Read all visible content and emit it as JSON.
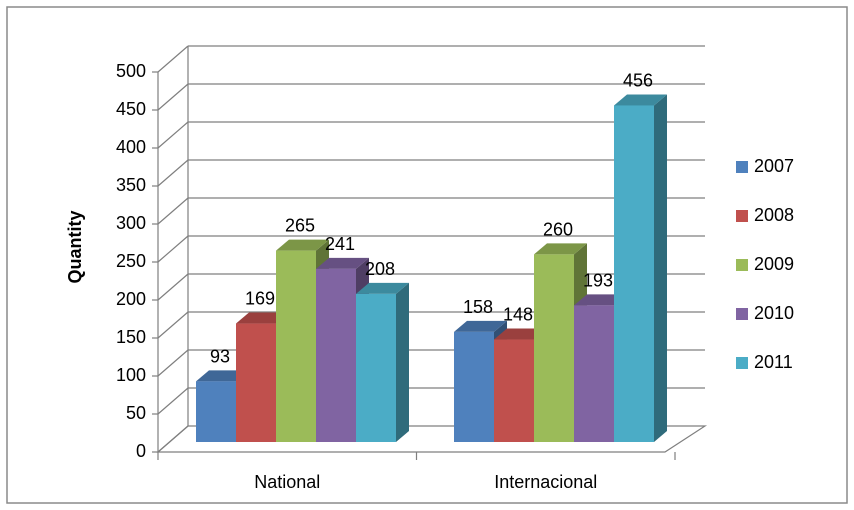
{
  "chart_data": {
    "type": "bar",
    "title": "",
    "xlabel": "",
    "ylabel": "Quantity",
    "ylim": [
      0,
      500
    ],
    "yticks": [
      0,
      50,
      100,
      150,
      200,
      250,
      300,
      350,
      400,
      450,
      500
    ],
    "categories": [
      "National",
      "Internacional"
    ],
    "series": [
      {
        "name": "2007",
        "values": [
          93,
          158
        ],
        "color": "#4F81BD"
      },
      {
        "name": "2008",
        "values": [
          169,
          148
        ],
        "color": "#C0504D"
      },
      {
        "name": "2009",
        "values": [
          265,
          260
        ],
        "color": "#9BBB59"
      },
      {
        "name": "2010",
        "values": [
          241,
          193
        ],
        "color": "#8064A2"
      },
      {
        "name": "2011",
        "values": [
          208,
          456
        ],
        "color": "#4BACC6"
      }
    ],
    "grid": true,
    "legend": "right",
    "style": "3d-clustered-column"
  }
}
